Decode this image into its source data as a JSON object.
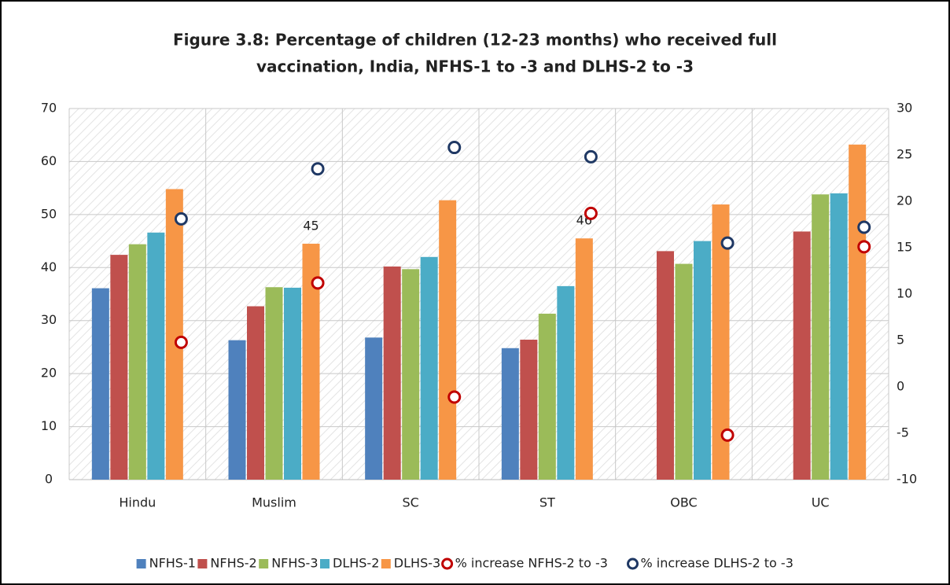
{
  "chart_data": {
    "type": "bar",
    "title": [
      "Figure 3.8: Percentage of children (12-23 months) who received full",
      "vaccination, India, NFHS-1 to -3 and DLHS-2 to -3"
    ],
    "categories": [
      "Hindu",
      "Muslim",
      "SC",
      "ST",
      "OBC",
      "UC"
    ],
    "series": [
      {
        "name": "NFHS-1",
        "color": "#4f81bd",
        "values": [
          36.1,
          26.3,
          26.8,
          24.8,
          null,
          null
        ]
      },
      {
        "name": "NFHS-2",
        "color": "#c0504d",
        "values": [
          42.4,
          32.7,
          40.2,
          26.4,
          43.1,
          46.8
        ]
      },
      {
        "name": "NFHS-3",
        "color": "#9bbb59",
        "values": [
          44.4,
          36.3,
          39.7,
          31.3,
          40.7,
          53.8
        ]
      },
      {
        "name": "DLHS-2",
        "color": "#4bacc6",
        "values": [
          46.6,
          36.2,
          42.0,
          36.5,
          45.0,
          54.0
        ]
      },
      {
        "name": "DLHS-3",
        "color": "#f79646",
        "values": [
          54.8,
          44.5,
          52.7,
          45.5,
          51.9,
          63.2
        ],
        "value_labels": [
          null,
          "45",
          null,
          "46",
          null,
          null
        ]
      },
      {
        "name": "% increase NFHS-2 to -3",
        "color": "#c00000",
        "type": "marker",
        "axis": "y2",
        "values": [
          4.8,
          11.2,
          -1.1,
          18.7,
          -5.2,
          15.1
        ]
      },
      {
        "name": "% increase DLHS-2 to -3",
        "color": "#1f3864",
        "type": "marker",
        "axis": "y2",
        "values": [
          18.1,
          23.5,
          25.8,
          24.8,
          15.5,
          17.2
        ]
      }
    ],
    "ylim": [
      0,
      70
    ],
    "yticks": [
      0,
      10,
      20,
      30,
      40,
      50,
      60,
      70
    ],
    "y2lim": [
      -10,
      30
    ],
    "y2ticks": [
      -10,
      -5,
      0,
      5,
      10,
      15,
      20,
      25,
      30
    ],
    "grid": true,
    "legend": "bottom"
  }
}
